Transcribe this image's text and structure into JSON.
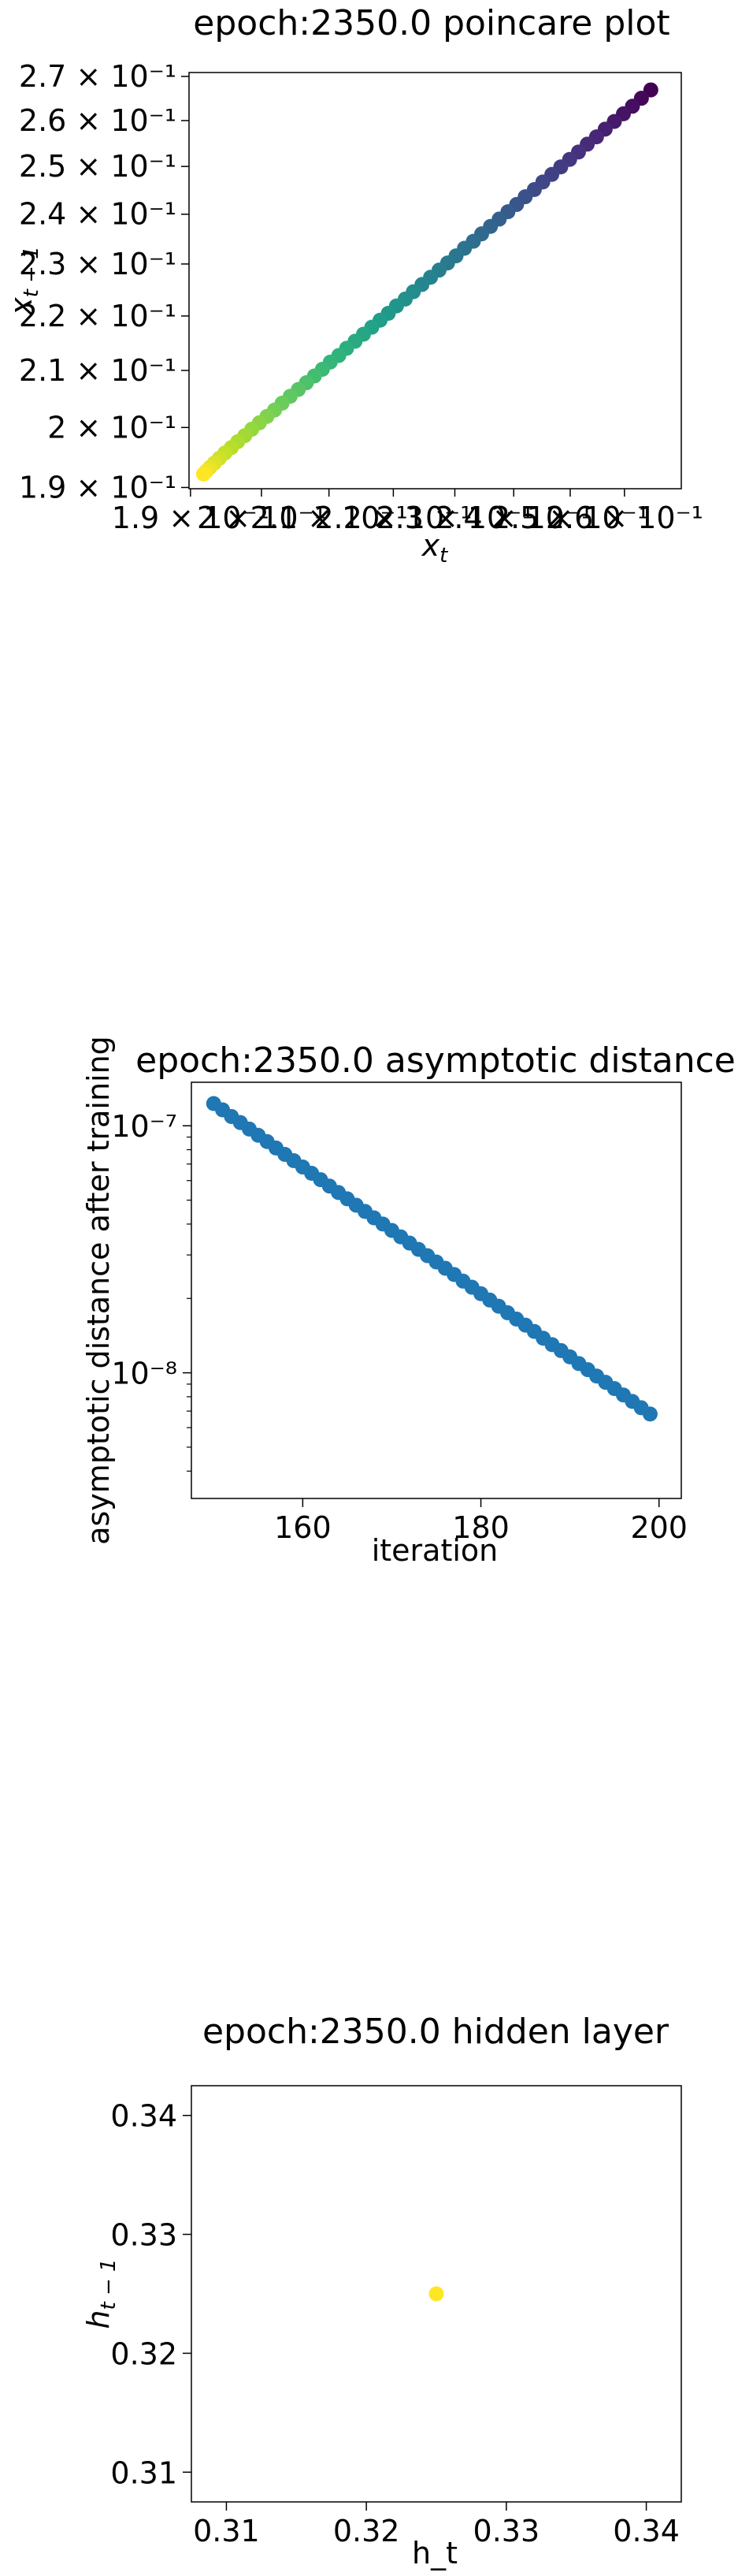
{
  "chart_data": [
    {
      "type": "scatter",
      "title": "epoch:2350.0 poincare plot",
      "xlabel": "x_t",
      "ylabel": "x_{t-1}",
      "xscale": "log",
      "yscale": "log",
      "xlim": [
        0.1898,
        0.2709
      ],
      "ylim": [
        0.1898,
        0.2709
      ],
      "colormap": "viridis",
      "color_meaning": "later points are lighter (yellow), earliest dark purple",
      "x_tick_labels": [
        "1.9 × 10⁻¹",
        "2 × 10⁻¹",
        "2.1 × 10⁻¹",
        "2.2 × 10⁻¹",
        "2.3 × 10⁻¹",
        "2.4 × 10⁻¹",
        "2.5 × 10⁻¹",
        "2.6 × 10⁻¹"
      ],
      "y_tick_labels": [
        "1.9 × 10⁻¹",
        "2 × 10⁻¹",
        "2.1 × 10⁻¹",
        "2.2 × 10⁻¹",
        "2.3 × 10⁻¹",
        "2.4 × 10⁻¹",
        "2.5 × 10⁻¹",
        "2.6 × 10⁻¹",
        "2.7 × 10⁻¹"
      ],
      "x_ticks": [
        0.19,
        0.2,
        0.21,
        0.22,
        0.23,
        0.24,
        0.25,
        0.26
      ],
      "y_ticks": [
        0.19,
        0.2,
        0.21,
        0.22,
        0.23,
        0.24,
        0.25,
        0.26,
        0.27
      ],
      "x": [
        0.265,
        0.2632,
        0.2615,
        0.2598,
        0.2581,
        0.2564,
        0.2548,
        0.2531,
        0.2515,
        0.2499,
        0.2483,
        0.2467,
        0.2451,
        0.2436,
        0.242,
        0.2405,
        0.239,
        0.2375,
        0.236,
        0.2345,
        0.2331,
        0.2316,
        0.2302,
        0.2288,
        0.2274,
        0.226,
        0.2246,
        0.2232,
        0.2219,
        0.2205,
        0.2192,
        0.2179,
        0.2166,
        0.2153,
        0.214,
        0.2127,
        0.2115,
        0.2102,
        0.209,
        0.2078,
        0.2066,
        0.2054,
        0.2042,
        0.203,
        0.2019,
        0.2008,
        0.1997,
        0.1986,
        0.1976,
        0.1966,
        0.1957,
        0.1948,
        0.194,
        0.1933,
        0.1927,
        0.1922,
        0.1918
      ],
      "y": [
        0.2669,
        0.265,
        0.2632,
        0.2615,
        0.2598,
        0.2581,
        0.2564,
        0.2548,
        0.2531,
        0.2515,
        0.2499,
        0.2483,
        0.2467,
        0.2451,
        0.2436,
        0.242,
        0.2405,
        0.239,
        0.2375,
        0.236,
        0.2345,
        0.2331,
        0.2316,
        0.2302,
        0.2288,
        0.2274,
        0.226,
        0.2246,
        0.2232,
        0.2219,
        0.2205,
        0.2192,
        0.2179,
        0.2166,
        0.2153,
        0.214,
        0.2127,
        0.2115,
        0.2102,
        0.209,
        0.2078,
        0.2066,
        0.2054,
        0.2042,
        0.203,
        0.2019,
        0.2008,
        0.1997,
        0.1986,
        0.1976,
        0.1966,
        0.1957,
        0.1948,
        0.194,
        0.1933,
        0.1927,
        0.1922
      ],
      "grid": false
    },
    {
      "type": "scatter",
      "title": "epoch:2350.0 asymptotic distance",
      "xlabel": "iteration",
      "ylabel": "asymptotic distance after training",
      "yscale": "log",
      "xlim": [
        147.5,
        202.5
      ],
      "ylim": [
        3.1e-09,
        1.5e-07
      ],
      "x_ticks": [
        160,
        180,
        200
      ],
      "y_ticks": [
        1e-08,
        1e-07
      ],
      "y_tick_labels": [
        "10⁻⁸",
        "10⁻⁷"
      ],
      "color": "#1f77b4",
      "x": [
        150,
        151,
        152,
        153,
        154,
        155,
        156,
        157,
        158,
        159,
        160,
        161,
        162,
        163,
        164,
        165,
        166,
        167,
        168,
        169,
        170,
        171,
        172,
        173,
        174,
        175,
        176,
        177,
        178,
        179,
        180,
        181,
        182,
        183,
        184,
        185,
        186,
        187,
        188,
        189,
        190,
        191,
        192,
        193,
        194,
        195,
        196,
        197,
        198,
        199
      ],
      "y": [
        1.23e-07,
        1.16e-07,
        1.09e-07,
        1.03e-07,
        9.7e-08,
        9.15e-08,
        8.63e-08,
        8.13e-08,
        7.66e-08,
        7.22e-08,
        6.81e-08,
        6.42e-08,
        6.05e-08,
        5.7e-08,
        5.37e-08,
        5.06e-08,
        4.77e-08,
        4.5e-08,
        4.24e-08,
        4e-08,
        3.77e-08,
        3.55e-08,
        3.35e-08,
        3.16e-08,
        2.98e-08,
        2.81e-08,
        2.65e-08,
        2.5e-08,
        2.35e-08,
        2.22e-08,
        2.09e-08,
        1.97e-08,
        1.86e-08,
        1.75e-08,
        1.65e-08,
        1.56e-08,
        1.47e-08,
        1.38e-08,
        1.3e-08,
        1.23e-08,
        1.16e-08,
        1.09e-08,
        1.03e-08,
        9.7e-09,
        9.15e-09,
        8.63e-09,
        8.13e-09,
        7.66e-09,
        7.22e-09,
        6.81e-09
      ],
      "grid": false
    },
    {
      "type": "scatter",
      "title": "epoch:2350.0 hidden layer",
      "xlabel": "h_t",
      "ylabel": "h_{t-1}",
      "xlim": [
        0.3075,
        0.3425
      ],
      "ylim": [
        0.3075,
        0.3425
      ],
      "x_ticks": [
        0.31,
        0.32,
        0.33,
        0.34
      ],
      "y_ticks": [
        0.31,
        0.32,
        0.33,
        0.34
      ],
      "x_tick_labels": [
        "0.31",
        "0.32",
        "0.33",
        "0.34"
      ],
      "y_tick_labels": [
        "0.31",
        "0.32",
        "0.33",
        "0.34"
      ],
      "color": "#fde725",
      "x": [
        0.325
      ],
      "y": [
        0.325
      ],
      "grid": false
    }
  ]
}
